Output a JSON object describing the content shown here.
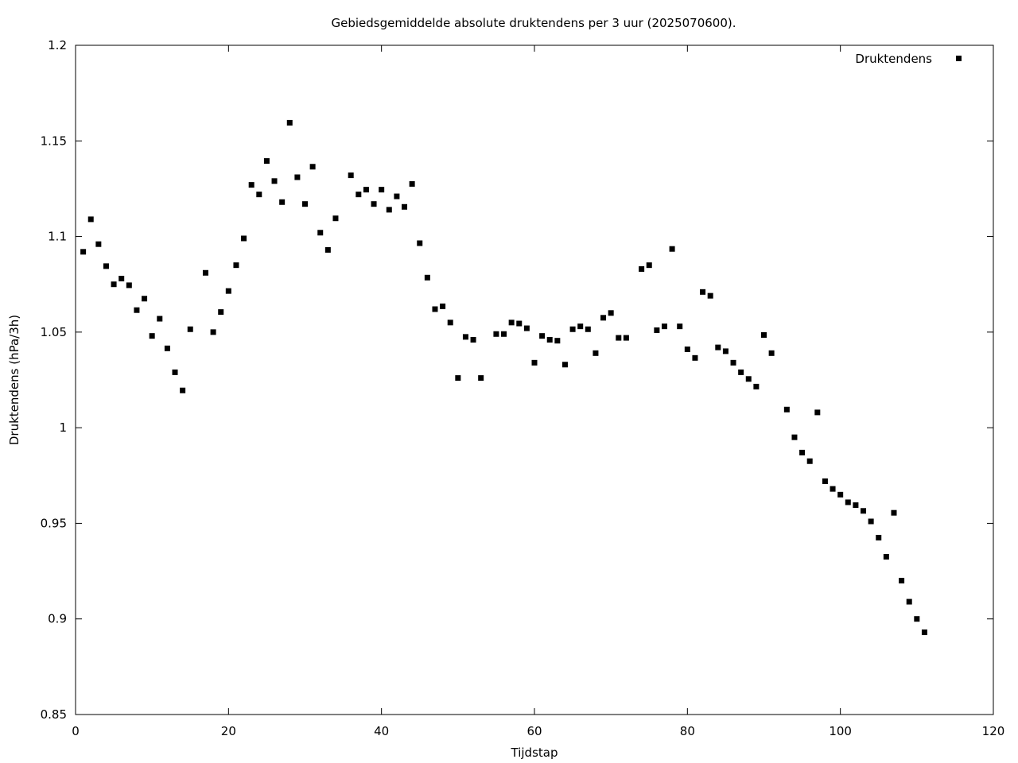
{
  "chart_data": {
    "type": "scatter",
    "title": "Gebiedsgemiddelde absolute druktendens per 3 uur (2025070600).",
    "xlabel": "Tijdstap",
    "ylabel": "Druktendens (hPa/3h)",
    "xlim": [
      0,
      120
    ],
    "ylim": [
      0.85,
      1.2
    ],
    "x_ticks": [
      0,
      20,
      40,
      60,
      80,
      100,
      120
    ],
    "y_ticks": [
      0.85,
      0.9,
      0.95,
      1,
      1.05,
      1.1,
      1.15,
      1.2
    ],
    "y_tick_labels": [
      "0.85",
      "0.9",
      "0.95",
      "1",
      "1.05",
      "1.1",
      "1.15",
      "1.2"
    ],
    "grid": false,
    "legend_position": "top-right",
    "series": [
      {
        "name": "Druktendens",
        "color": "#000000",
        "marker": "square",
        "x": [
          1,
          2,
          3,
          4,
          5,
          6,
          7,
          8,
          9,
          10,
          11,
          12,
          13,
          14,
          15,
          17,
          18,
          19,
          20,
          21,
          22,
          23,
          24,
          25,
          26,
          27,
          28,
          29,
          30,
          31,
          32,
          33,
          34,
          36,
          37,
          38,
          39,
          40,
          41,
          42,
          43,
          44,
          45,
          46,
          47,
          48,
          49,
          50,
          51,
          52,
          53,
          55,
          56,
          57,
          58,
          59,
          60,
          61,
          62,
          63,
          64,
          65,
          66,
          67,
          68,
          69,
          70,
          71,
          72,
          74,
          75,
          76,
          77,
          78,
          79,
          80,
          81,
          82,
          83,
          84,
          85,
          86,
          87,
          88,
          89,
          90,
          91,
          93,
          94,
          95,
          96,
          97,
          98,
          99,
          100,
          101,
          102,
          103,
          104,
          105,
          106,
          107,
          108,
          109,
          110,
          111
        ],
        "y": [
          1.092,
          1.109,
          1.096,
          1.0845,
          1.075,
          1.078,
          1.0745,
          1.0615,
          1.0675,
          1.048,
          1.057,
          1.0415,
          1.029,
          1.0195,
          1.0515,
          1.081,
          1.05,
          1.0605,
          1.0715,
          1.085,
          1.099,
          1.127,
          1.122,
          1.1395,
          1.129,
          1.118,
          1.1595,
          1.131,
          1.117,
          1.1365,
          1.102,
          1.093,
          1.1095,
          1.132,
          1.122,
          1.1245,
          1.117,
          1.1245,
          1.114,
          1.121,
          1.1155,
          1.1275,
          1.0965,
          1.0785,
          1.062,
          1.0635,
          1.055,
          1.026,
          1.0475,
          1.046,
          1.026,
          1.049,
          1.049,
          1.055,
          1.0545,
          1.052,
          1.034,
          1.048,
          1.046,
          1.0455,
          1.033,
          1.0515,
          1.053,
          1.0515,
          1.039,
          1.0575,
          1.06,
          1.047,
          1.047,
          1.083,
          1.085,
          1.051,
          1.053,
          1.0935,
          1.053,
          1.041,
          1.0365,
          1.071,
          1.069,
          1.042,
          1.04,
          1.034,
          1.029,
          1.0255,
          1.0215,
          1.0485,
          1.039,
          1.0095,
          0.995,
          0.987,
          0.9825,
          1.008,
          0.972,
          0.968,
          0.965,
          0.961,
          0.9595,
          0.9565,
          0.951,
          0.9425,
          0.9325,
          0.9555,
          0.92,
          0.909,
          0.9,
          0.893
        ]
      }
    ]
  }
}
